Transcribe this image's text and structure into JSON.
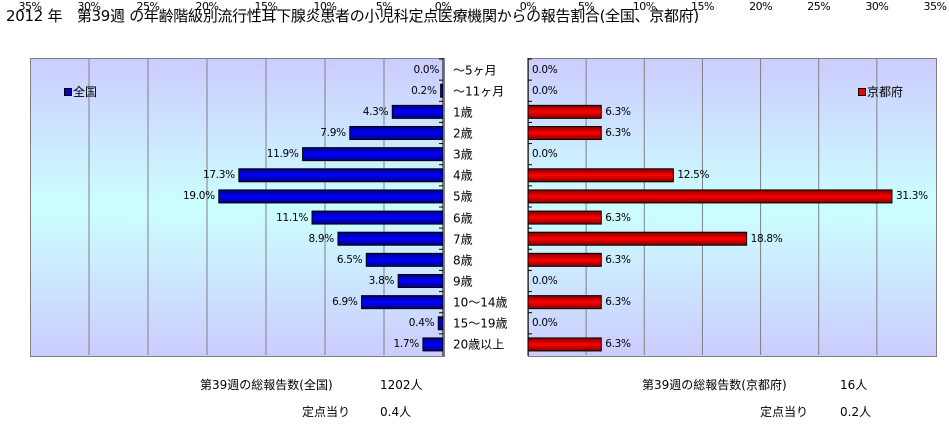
{
  "title": "2012 年　第39週 の年齢階級別流行性耳下腺炎患者の小児科定点医療機関からの報告割合(全国、京都府)",
  "chart_data": [
    {
      "type": "bar",
      "orientation": "horizontal-reversed",
      "title": "全国",
      "legend": "全国",
      "legend_position": "top-left",
      "xlim": [
        0,
        35
      ],
      "ticks": [
        "35%",
        "30%",
        "25%",
        "20%",
        "15%",
        "10%",
        "5%",
        "0%"
      ],
      "categories": [
        "～5ヶ月",
        "～11ヶ月",
        "1歳",
        "2歳",
        "3歳",
        "4歳",
        "5歳",
        "6歳",
        "7歳",
        "8歳",
        "9歳",
        "10～14歳",
        "15～19歳",
        "20歳以上"
      ],
      "values": [
        0.0,
        0.2,
        4.3,
        7.9,
        11.9,
        17.3,
        19.0,
        11.1,
        8.9,
        6.5,
        3.8,
        6.9,
        0.4,
        1.7
      ],
      "labels": [
        "0.0%",
        "0.2%",
        "4.3%",
        "7.9%",
        "11.9%",
        "17.3%",
        "19.0%",
        "11.1%",
        "8.9%",
        "6.5%",
        "3.8%",
        "6.9%",
        "0.4%",
        "1.7%"
      ],
      "color": "#0000cc",
      "grid": true
    },
    {
      "type": "bar",
      "orientation": "horizontal",
      "title": "京都府",
      "legend": "京都府",
      "legend_position": "top-right",
      "xlim": [
        0,
        35
      ],
      "ticks": [
        "0%",
        "5%",
        "10%",
        "15%",
        "20%",
        "25%",
        "30%",
        "35%"
      ],
      "values": [
        0.0,
        0.0,
        6.3,
        6.3,
        0.0,
        12.5,
        31.3,
        6.3,
        18.8,
        6.3,
        0.0,
        6.3,
        0.0,
        6.3
      ],
      "labels": [
        "0.0%",
        "0.0%",
        "6.3%",
        "6.3%",
        "0.0%",
        "12.5%",
        "31.3%",
        "6.3%",
        "18.8%",
        "6.3%",
        "0.0%",
        "6.3%",
        "0.0%",
        "6.3%"
      ],
      "color": "#ee0000",
      "grid": true
    }
  ],
  "footer": {
    "left": {
      "total_label": "第39週の総報告数(全国)",
      "total_value": "1202人",
      "per_label": "定点当り",
      "per_value": "0.4人"
    },
    "right": {
      "total_label": "第39週の総報告数(京都府)",
      "total_value": "16人",
      "per_label": "定点当り",
      "per_value": "0.2人"
    }
  }
}
